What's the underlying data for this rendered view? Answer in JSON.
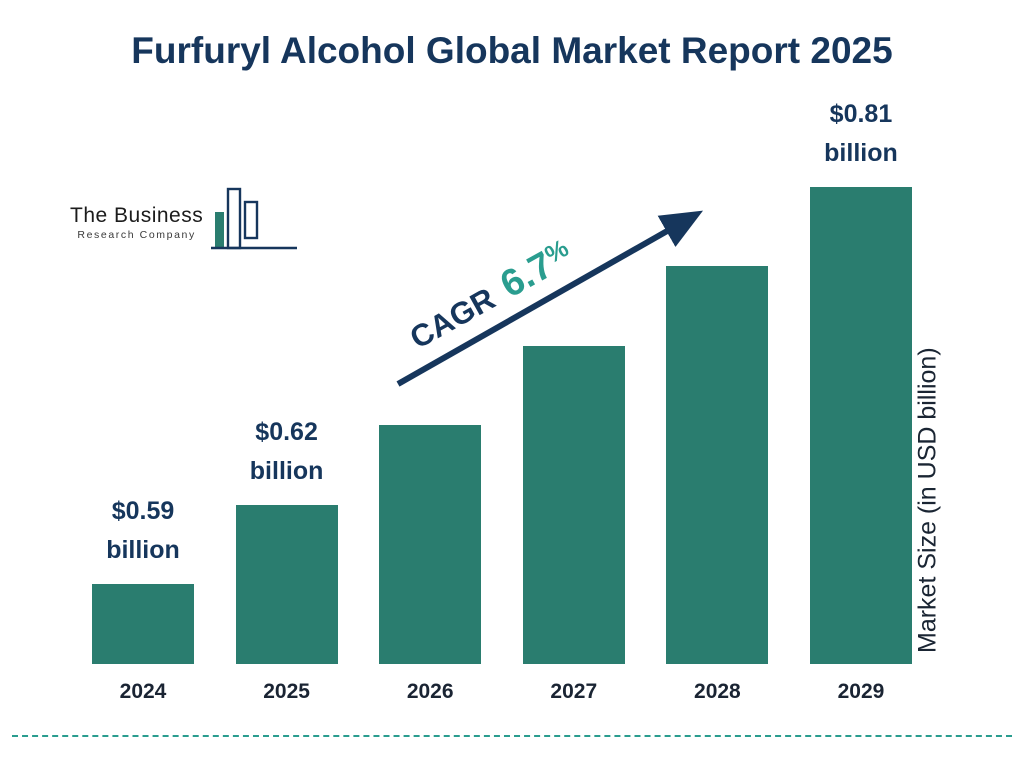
{
  "page": {
    "title": "Furfuryl Alcohol Global Market Report 2025"
  },
  "logo": {
    "line1": "The Business",
    "line2": "Research Company"
  },
  "cagr": {
    "label": "CAGR",
    "value": "6.7",
    "unit": "%"
  },
  "colors": {
    "bar": "#2a7d6f",
    "navy": "#16365c",
    "teal": "#2a9d8f",
    "year_text": "#1a2433"
  },
  "chart_data": {
    "type": "bar",
    "title": "Furfuryl Alcohol Global Market Report 2025",
    "categories": [
      "2024",
      "2025",
      "2026",
      "2027",
      "2028",
      "2029"
    ],
    "values": [
      0.59,
      0.62,
      0.66,
      0.71,
      0.76,
      0.81
    ],
    "value_labels": [
      [
        "$0.59",
        "billion"
      ],
      [
        "$0.62",
        "billion"
      ],
      null,
      null,
      null,
      [
        "$0.81",
        "billion"
      ]
    ],
    "ylabel": "Market Size (in USD billion)",
    "cagr_text": "CAGR 6.7%",
    "legend": false,
    "grid": false
  }
}
